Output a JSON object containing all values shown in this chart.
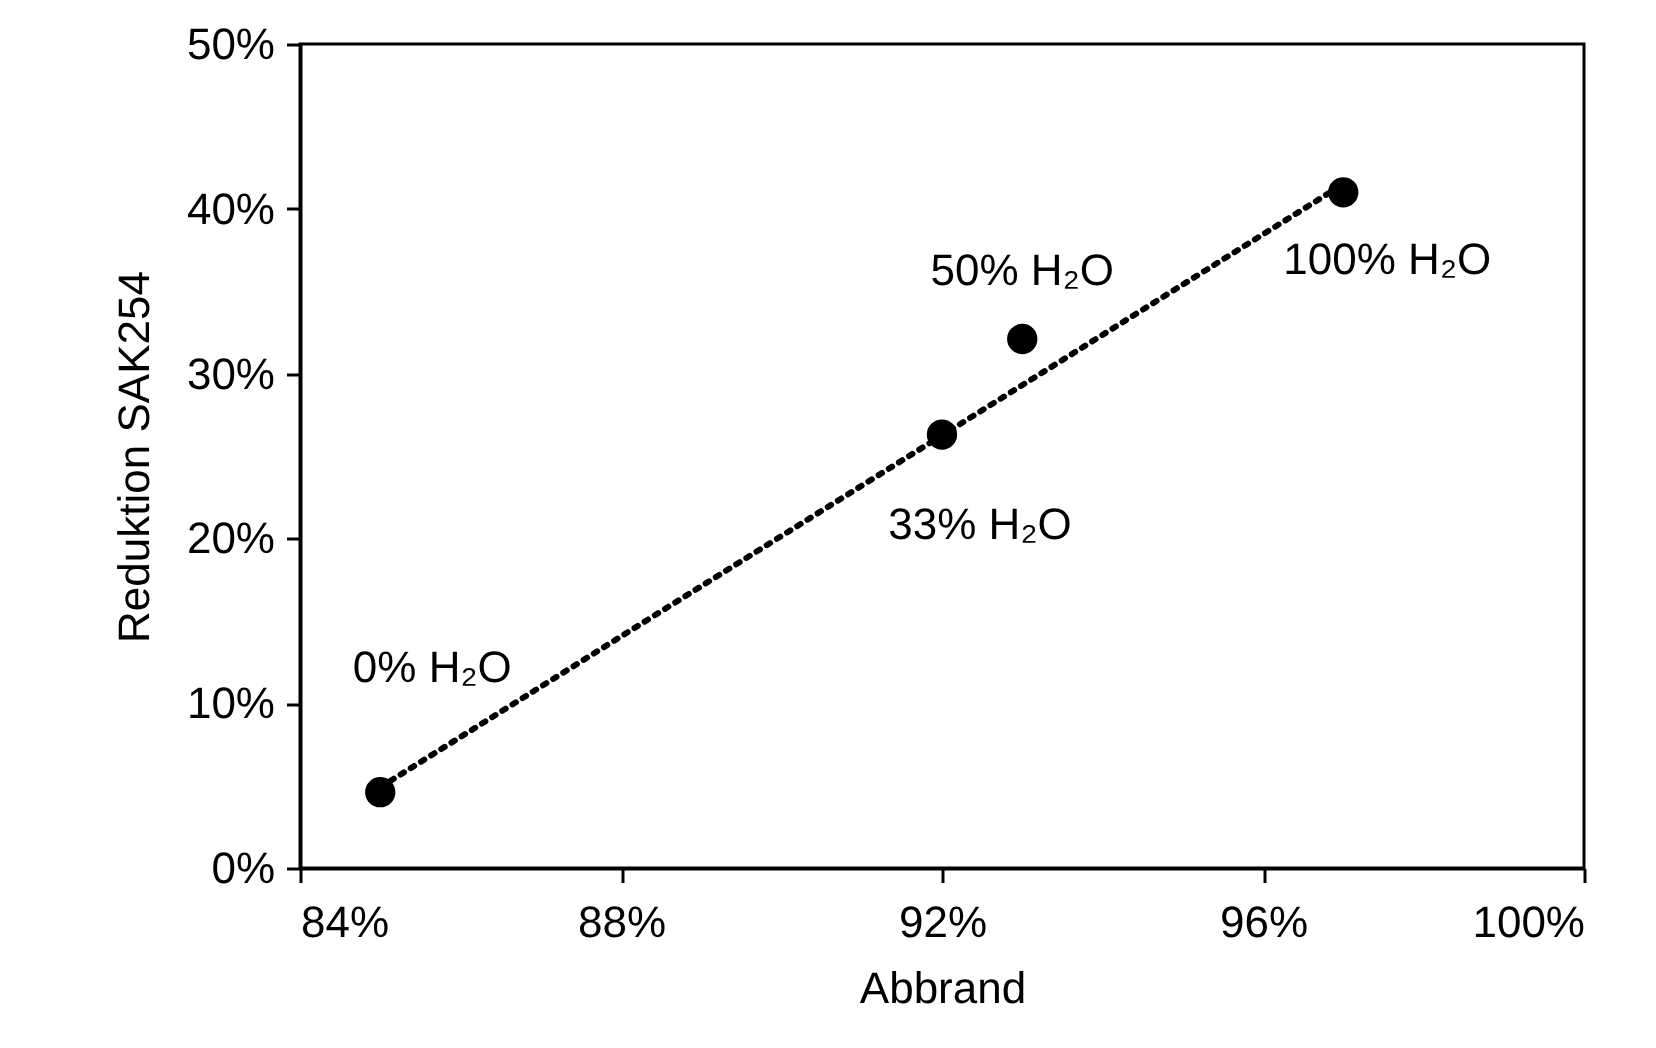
{
  "chart_data": {
    "type": "scatter",
    "xlabel": "Abbrand",
    "ylabel": "Reduktion SAK254",
    "x": [
      85,
      92,
      93,
      97
    ],
    "series": [
      {
        "color": "#000000",
        "marker": "circle",
        "values": [
          4.6,
          26.3,
          32.1,
          41.0
        ]
      },
      {
        "type": "line",
        "color": "#000000",
        "line_style": "dotted",
        "x": [
          85,
          97
        ],
        "values": [
          4.9,
          41.5
        ]
      }
    ],
    "xlim": [
      84,
      100
    ],
    "xticks": [
      {
        "value": 84,
        "label": "84%"
      },
      {
        "value": 88,
        "label": "88%"
      },
      {
        "value": 92,
        "label": "92%"
      },
      {
        "value": 96,
        "label": "96%"
      },
      {
        "value": 100,
        "label": "100%"
      }
    ],
    "ylim": [
      0,
      50
    ],
    "yticks": [
      {
        "value": 0,
        "label": "0%"
      },
      {
        "value": 10,
        "label": "10%"
      },
      {
        "value": 20,
        "label": "20%"
      },
      {
        "value": 30,
        "label": "30%"
      },
      {
        "value": 40,
        "label": "40%"
      },
      {
        "value": 50,
        "label": "50%"
      }
    ],
    "annotations": [
      {
        "text": "0% H₂O",
        "x": 85,
        "y": 4.6
      },
      {
        "text": "33% H₂O",
        "x": 92,
        "y": 26.3
      },
      {
        "text": "50% H₂O",
        "x": 93,
        "y": 32.1
      },
      {
        "text": "100% H₂O",
        "x": 97,
        "y": 41.0
      }
    ],
    "grid": false
  }
}
